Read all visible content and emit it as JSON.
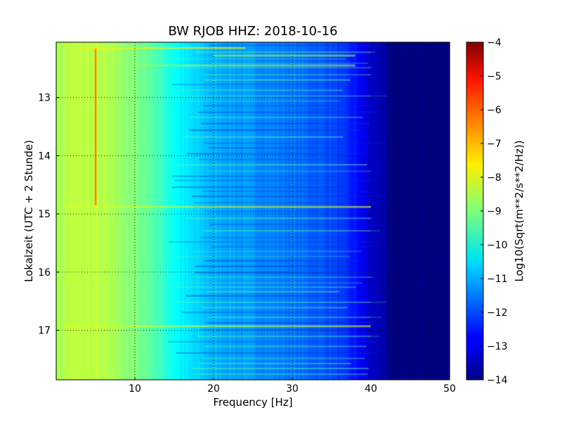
{
  "chart_data": {
    "type": "heatmap",
    "title": "BW RJOB HHZ: 2018-10-16",
    "xlabel": "Frequency [Hz]",
    "ylabel": "Lokalzeit (UTC + 2 Stunde)",
    "xlim": [
      0,
      50
    ],
    "ylim": [
      17.85,
      12.05
    ],
    "y_inverted": true,
    "x_ticks": [
      10,
      20,
      30,
      40,
      50
    ],
    "y_ticks": [
      13,
      14,
      15,
      16,
      17
    ],
    "grid": true,
    "colormap": "jet",
    "colorbar": {
      "label": "Log10(Sqrt(m**2/s**2/Hz))",
      "range": [
        -14,
        -4
      ],
      "ticks": [
        -4,
        -5,
        -6,
        -7,
        -8,
        -9,
        -10,
        -11,
        -12,
        -13,
        -14
      ]
    },
    "features": {
      "spectral_line_hz": 5,
      "spectral_line_hours": [
        12.15,
        14.85
      ],
      "cutoff_band_hz": [
        40,
        42
      ],
      "profile_hz": [
        0,
        2,
        5,
        8,
        12,
        16,
        20,
        25,
        30,
        35,
        38,
        40,
        42,
        50
      ],
      "profile_log10": [
        -8.6,
        -8.4,
        -8.4,
        -8.7,
        -9.3,
        -10.4,
        -11.0,
        -11.3,
        -11.6,
        -12.0,
        -12.6,
        -13.3,
        -14.0,
        -14.0
      ]
    }
  }
}
